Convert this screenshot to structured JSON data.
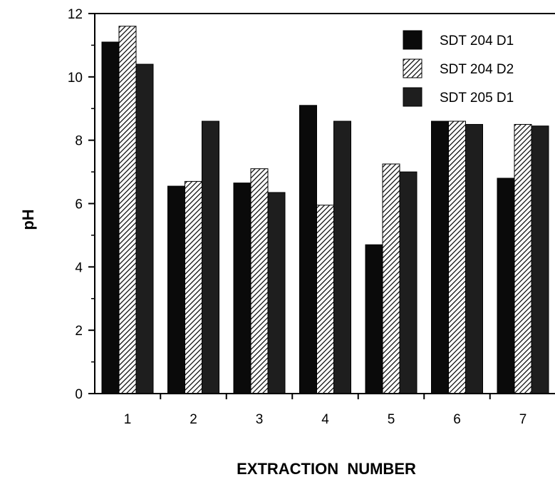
{
  "chart_data": {
    "type": "bar",
    "title": "",
    "xlabel": "EXTRACTION  NUMBER",
    "ylabel": "pH",
    "categories": [
      "1",
      "2",
      "3",
      "4",
      "5",
      "6",
      "7"
    ],
    "series": [
      {
        "name": "SDT 204 D1",
        "values": [
          11.1,
          6.55,
          6.65,
          9.1,
          4.7,
          8.6,
          6.8
        ]
      },
      {
        "name": "SDT 204 D2",
        "values": [
          11.6,
          6.7,
          7.1,
          5.95,
          7.25,
          8.6,
          8.5
        ]
      },
      {
        "name": "SDT 205 D1",
        "values": [
          10.4,
          8.6,
          6.35,
          8.6,
          7.0,
          8.5,
          8.45
        ]
      }
    ],
    "ylim": [
      0,
      12
    ],
    "yticks": [
      "0",
      "2",
      "4",
      "6",
      "8",
      "10",
      "12"
    ],
    "grid": false,
    "legend_position": "top-right",
    "series_fills": [
      "solid-black",
      "diagonal-hatch",
      "solid-dark-gray"
    ]
  },
  "colors": {
    "series1": "#0a0a0a",
    "series2_hatch": "#000000",
    "series2_bg": "#ffffff",
    "series3": "#1e1e1e"
  }
}
